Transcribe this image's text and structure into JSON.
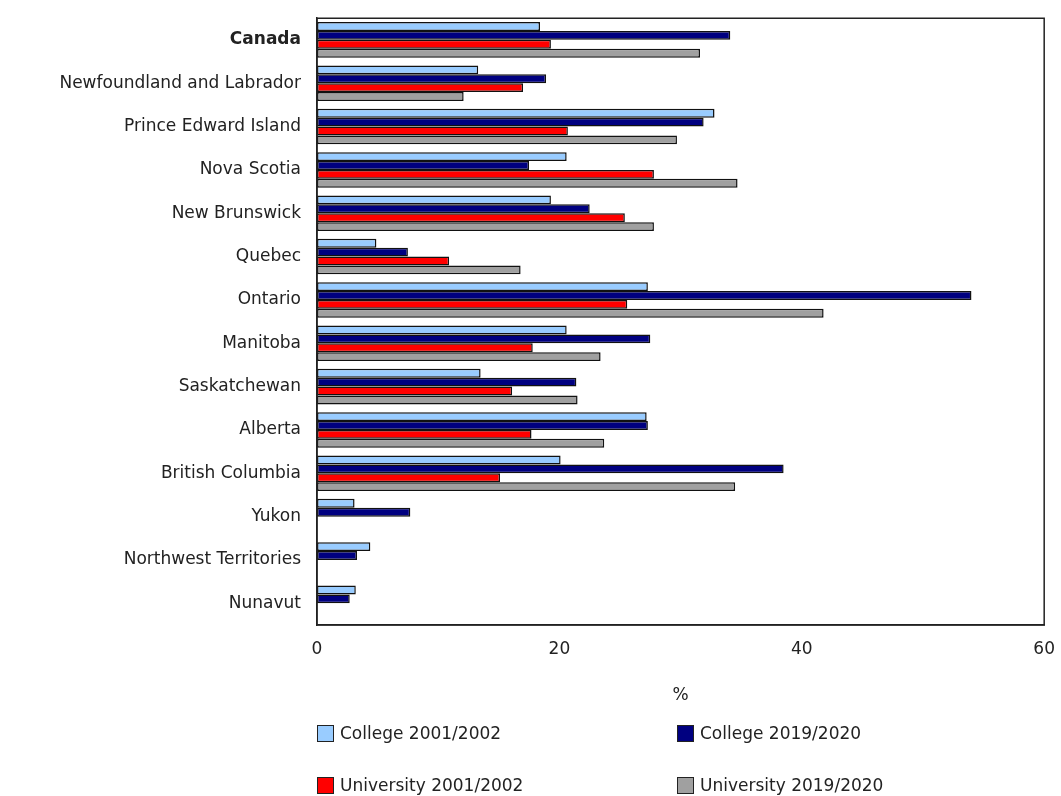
{
  "chart_data": {
    "type": "bar",
    "orientation": "horizontal",
    "xlabel": "%",
    "categories": [
      "Canada",
      "Newfoundland and Labrador",
      "Prince Edward Island",
      "Nova Scotia",
      "New Brunswick",
      "Quebec",
      "Ontario",
      "Manitoba",
      "Saskatchewan",
      "Alberta",
      "British Columbia",
      "Yukon",
      "Northwest Territories",
      "Nunavut"
    ],
    "series": [
      {
        "name": "College 2001/2002",
        "color": "#99ccff",
        "values": [
          18.4,
          13.3,
          32.8,
          20.6,
          19.3,
          4.9,
          27.3,
          20.6,
          13.5,
          27.2,
          20.1,
          3.1,
          4.4,
          3.2
        ]
      },
      {
        "name": "College 2019/2020",
        "color": "#000080",
        "values": [
          34.1,
          18.9,
          31.9,
          17.5,
          22.5,
          7.5,
          54.0,
          27.5,
          21.4,
          27.3,
          38.5,
          7.7,
          3.3,
          2.7
        ]
      },
      {
        "name": "University 2001/2002",
        "color": "#ff0000",
        "values": [
          19.3,
          17.0,
          20.7,
          27.8,
          25.4,
          10.9,
          25.6,
          17.8,
          16.1,
          17.7,
          15.1,
          null,
          null,
          null
        ]
      },
      {
        "name": "University 2019/2020",
        "color": "#a0a0a0",
        "values": [
          31.6,
          12.1,
          29.7,
          34.7,
          27.8,
          16.8,
          41.8,
          23.4,
          21.5,
          23.7,
          34.5,
          null,
          null,
          null
        ]
      }
    ],
    "xlim": [
      0,
      60
    ],
    "xticks": [
      0,
      20,
      40,
      60
    ],
    "grid": false,
    "legend": "bottom"
  }
}
